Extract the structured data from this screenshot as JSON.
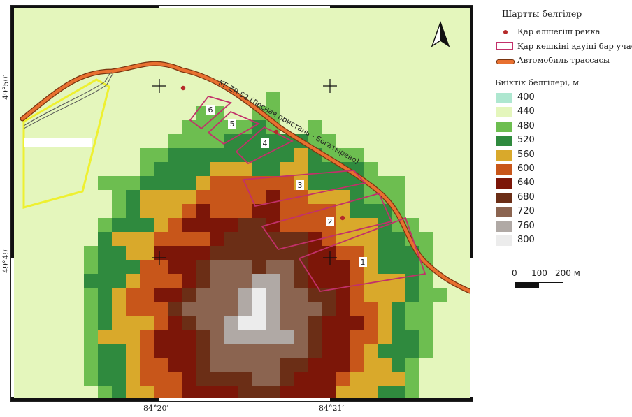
{
  "map": {
    "road_label": "KF ZR-52 (Лесная пристань - Богатырево)",
    "lat_labels": [
      "49°50′",
      "49°49′"
    ],
    "lon_labels": [
      "84°20′",
      "84°21′"
    ],
    "zones": [
      {
        "id": "1",
        "label": "1"
      },
      {
        "id": "2",
        "label": "2"
      },
      {
        "id": "3",
        "label": "3"
      },
      {
        "id": "4",
        "label": "4"
      },
      {
        "id": "5",
        "label": "5"
      },
      {
        "id": "6",
        "label": "6"
      }
    ],
    "colors": {
      "road": "#e87030",
      "road_outline": "#7a3510",
      "zone_outline": "#c2306a",
      "snow_gauge": "#b52a2a",
      "highlight_outline": "#eef030"
    },
    "north_arrow_icon": "north-arrow-icon",
    "grid_cross_icon": "crosshair-icon"
  },
  "legend": {
    "title": "Шартты белгілер",
    "items": [
      {
        "label": "Қар өлшегіш рейка",
        "icon": "red-dot-icon"
      },
      {
        "label": "Қар көшкіні қауіпі бар учаске",
        "icon": "pink-rect-outline-icon"
      },
      {
        "label": "Автомобиль трассасы",
        "icon": "orange-road-line-icon"
      }
    ],
    "elevation_title": "Биіктік белгілері, м",
    "elevation": [
      {
        "value": "400",
        "color": "#aee7d0"
      },
      {
        "value": "440",
        "color": "#e4f6bc"
      },
      {
        "value": "480",
        "color": "#6dbe50"
      },
      {
        "value": "520",
        "color": "#2f8a3e"
      },
      {
        "value": "560",
        "color": "#d9a92b"
      },
      {
        "value": "600",
        "color": "#c8561a"
      },
      {
        "value": "640",
        "color": "#7c1608"
      },
      {
        "value": "680",
        "color": "#6b2e16"
      },
      {
        "value": "720",
        "color": "#8b6450"
      },
      {
        "value": "760",
        "color": "#b0a9a5"
      },
      {
        "value": "800",
        "color": "#ececec"
      }
    ],
    "scale": {
      "labels": [
        "0",
        "100",
        "200 м"
      ]
    }
  }
}
